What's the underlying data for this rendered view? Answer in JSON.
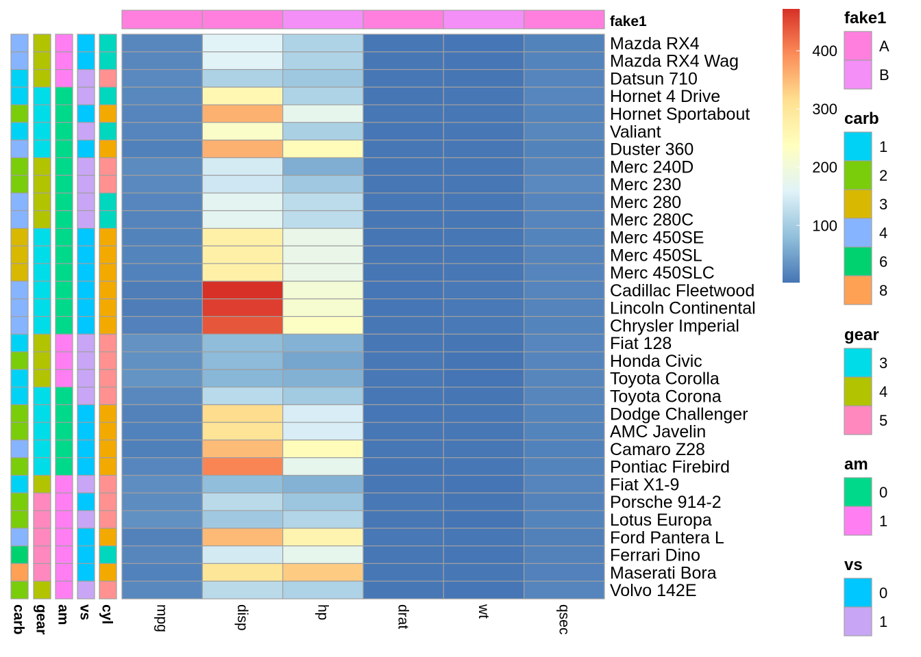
{
  "chart_data": {
    "type": "heatmap",
    "columns": [
      "mpg",
      "disp",
      "hp",
      "drat",
      "wt",
      "qsec"
    ],
    "rows": [
      "Mazda RX4",
      "Mazda RX4 Wag",
      "Datsun 710",
      "Hornet 4 Drive",
      "Hornet Sportabout",
      "Valiant",
      "Duster 360",
      "Merc 240D",
      "Merc 230",
      "Merc 280",
      "Merc 280C",
      "Merc 450SE",
      "Merc 450SL",
      "Merc 450SLC",
      "Cadillac Fleetwood",
      "Lincoln Continental",
      "Chrysler Imperial",
      "Fiat 128",
      "Honda Civic",
      "Toyota Corolla",
      "Toyota Corona",
      "Dodge Challenger",
      "AMC Javelin",
      "Camaro Z28",
      "Pontiac Firebird",
      "Fiat X1-9",
      "Porsche 914-2",
      "Lotus Europa",
      "Ford Pantera L",
      "Ferrari Dino",
      "Maserati Bora",
      "Volvo 142E"
    ],
    "values": [
      [
        21,
        160,
        110,
        3.9,
        2.62,
        16.46
      ],
      [
        21,
        160,
        110,
        3.9,
        2.875,
        17.02
      ],
      [
        22.8,
        108,
        93,
        3.85,
        2.32,
        18.61
      ],
      [
        21.4,
        258,
        110,
        3.08,
        3.215,
        19.44
      ],
      [
        18.7,
        360,
        175,
        3.15,
        3.44,
        17.02
      ],
      [
        18.1,
        225,
        105,
        2.76,
        3.46,
        20.22
      ],
      [
        14.3,
        360,
        245,
        3.21,
        3.57,
        15.84
      ],
      [
        24.4,
        146.7,
        62,
        3.69,
        3.19,
        20
      ],
      [
        22.8,
        140.8,
        95,
        3.92,
        3.15,
        22.9
      ],
      [
        19.2,
        167.6,
        123,
        3.92,
        3.44,
        18.3
      ],
      [
        17.8,
        167.6,
        123,
        3.92,
        3.44,
        18.9
      ],
      [
        16.4,
        275.8,
        180,
        3.07,
        4.07,
        17.4
      ],
      [
        17.3,
        275.8,
        180,
        3.07,
        3.73,
        17.6
      ],
      [
        15.2,
        275.8,
        180,
        3.07,
        3.78,
        18
      ],
      [
        10.4,
        472,
        205,
        2.93,
        5.25,
        17.98
      ],
      [
        10.4,
        460,
        215,
        3,
        5.424,
        17.82
      ],
      [
        14.7,
        440,
        230,
        3.23,
        5.345,
        17.42
      ],
      [
        32.4,
        78.7,
        66,
        4.08,
        2.2,
        19.47
      ],
      [
        30.4,
        75.7,
        52,
        4.93,
        1.615,
        18.52
      ],
      [
        33.9,
        71.1,
        65,
        4.22,
        1.835,
        19.9
      ],
      [
        21.5,
        120.1,
        97,
        3.7,
        2.465,
        20.01
      ],
      [
        15.5,
        318,
        150,
        2.76,
        3.52,
        16.87
      ],
      [
        15.2,
        304,
        150,
        3.15,
        3.435,
        17.3
      ],
      [
        13.3,
        350,
        245,
        3.73,
        3.84,
        15.41
      ],
      [
        19.2,
        400,
        175,
        3.08,
        3.845,
        17.05
      ],
      [
        27.3,
        79,
        66,
        4.08,
        1.935,
        18.9
      ],
      [
        26,
        120.3,
        91,
        4.43,
        2.14,
        16.7
      ],
      [
        30.4,
        95.1,
        113,
        3.77,
        1.513,
        16.9
      ],
      [
        15.8,
        351,
        264,
        4.22,
        3.17,
        14.5
      ],
      [
        19.7,
        145,
        175,
        3.62,
        2.77,
        15.5
      ],
      [
        15,
        301,
        335,
        3.54,
        3.57,
        14.6
      ],
      [
        21.4,
        121,
        109,
        4.11,
        2.78,
        18.6
      ]
    ],
    "colorbar": {
      "ticks": [
        100,
        200,
        300,
        400
      ],
      "min": 1.5,
      "max": 472
    },
    "col_annotation": {
      "name": "fake1",
      "values": [
        "A",
        "A",
        "B",
        "A",
        "B",
        "A"
      ]
    },
    "row_annotations": [
      {
        "name": "carb",
        "values": [
          "4",
          "4",
          "1",
          "1",
          "2",
          "1",
          "4",
          "2",
          "2",
          "4",
          "4",
          "3",
          "3",
          "3",
          "4",
          "4",
          "4",
          "1",
          "2",
          "1",
          "1",
          "2",
          "2",
          "4",
          "2",
          "1",
          "2",
          "2",
          "4",
          "6",
          "8",
          "2"
        ]
      },
      {
        "name": "gear",
        "values": [
          "4",
          "4",
          "4",
          "3",
          "3",
          "3",
          "3",
          "4",
          "4",
          "4",
          "4",
          "3",
          "3",
          "3",
          "3",
          "3",
          "3",
          "4",
          "4",
          "4",
          "3",
          "3",
          "3",
          "3",
          "3",
          "4",
          "5",
          "5",
          "5",
          "5",
          "5",
          "4"
        ]
      },
      {
        "name": "am",
        "values": [
          "1",
          "1",
          "1",
          "0",
          "0",
          "0",
          "0",
          "0",
          "0",
          "0",
          "0",
          "0",
          "0",
          "0",
          "0",
          "0",
          "0",
          "1",
          "1",
          "1",
          "0",
          "0",
          "0",
          "0",
          "0",
          "1",
          "1",
          "1",
          "1",
          "1",
          "1",
          "1"
        ]
      },
      {
        "name": "vs",
        "values": [
          "0",
          "0",
          "1",
          "1",
          "0",
          "1",
          "0",
          "1",
          "1",
          "1",
          "1",
          "0",
          "0",
          "0",
          "0",
          "0",
          "0",
          "1",
          "1",
          "1",
          "1",
          "0",
          "0",
          "0",
          "0",
          "1",
          "0",
          "1",
          "0",
          "0",
          "0",
          "1"
        ]
      },
      {
        "name": "cyl",
        "values": [
          "6",
          "6",
          "4",
          "6",
          "8",
          "6",
          "8",
          "4",
          "4",
          "6",
          "6",
          "8",
          "8",
          "8",
          "8",
          "8",
          "8",
          "4",
          "4",
          "4",
          "4",
          "8",
          "8",
          "8",
          "8",
          "4",
          "4",
          "4",
          "8",
          "6",
          "8",
          "4"
        ]
      }
    ],
    "legends": [
      {
        "title": "fake1",
        "items": [
          {
            "label": "A",
            "color": "#FF7FDF"
          },
          {
            "label": "B",
            "color": "#F48FF8"
          }
        ]
      },
      {
        "title": "carb",
        "items": [
          {
            "label": "1",
            "color": "#00D2F5"
          },
          {
            "label": "2",
            "color": "#7ACD0A"
          },
          {
            "label": "3",
            "color": "#D8B800"
          },
          {
            "label": "4",
            "color": "#87B4FF"
          },
          {
            "label": "6",
            "color": "#00D26F"
          },
          {
            "label": "8",
            "color": "#FFA155"
          }
        ]
      },
      {
        "title": "gear",
        "items": [
          {
            "label": "3",
            "color": "#00DDE8"
          },
          {
            "label": "4",
            "color": "#B2C401"
          },
          {
            "label": "5",
            "color": "#FF88BF"
          }
        ]
      },
      {
        "title": "am",
        "items": [
          {
            "label": "0",
            "color": "#00D98A"
          },
          {
            "label": "1",
            "color": "#FF7FF3"
          }
        ]
      },
      {
        "title": "vs",
        "items": [
          {
            "label": "0",
            "color": "#00C7FF"
          },
          {
            "label": "1",
            "color": "#C8A6F5"
          }
        ]
      }
    ],
    "cyl_colors": {
      "4": "#FF9191",
      "6": "#00D7BE",
      "8": "#F3AA00"
    },
    "palette": [
      "#4575B4",
      "#91BFDB",
      "#E0F3F8",
      "#FFFFBF",
      "#FEE090",
      "#FC8D59",
      "#D73027"
    ]
  }
}
